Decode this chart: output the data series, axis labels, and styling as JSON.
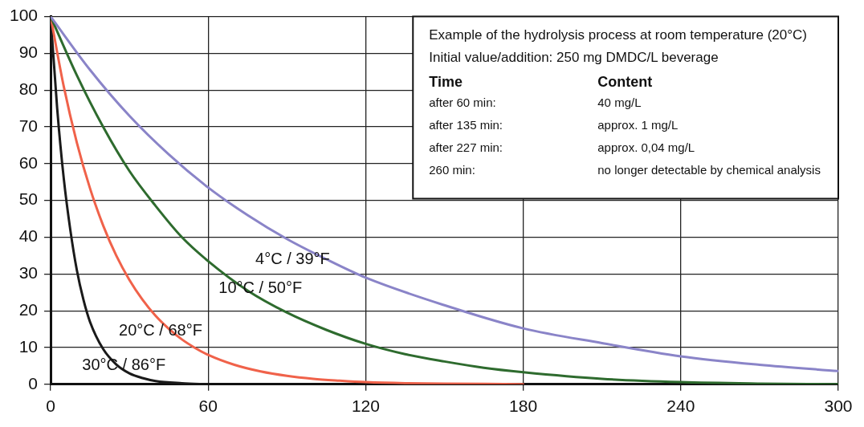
{
  "chart_data": {
    "type": "line",
    "xlim": [
      0,
      300
    ],
    "xticks": [
      0,
      60,
      120,
      180,
      240,
      300
    ],
    "ylim": [
      0,
      100
    ],
    "yticks": [
      0,
      10,
      20,
      30,
      40,
      50,
      60,
      70,
      80,
      90,
      100
    ],
    "grid": true,
    "legend": false,
    "marker": "none",
    "line_style": "solid",
    "annotations": [
      "Example of the hydrolysis process at room temperature (20°C)",
      "Initial value/addition: 250 mg DMDC/L beverage",
      "Time",
      "Content",
      "after 60 min:",
      "40 mg/L",
      "after 135 min:",
      "approx. 1 mg/L",
      "after 227 min:",
      "approx. 0,04 mg/L",
      "260 min:",
      "no longer detectable by chemical analysis"
    ],
    "series": [
      {
        "name": "4°C / 39°F",
        "color": "#8a84c8",
        "x": [
          0,
          15,
          30,
          45,
          60,
          75,
          90,
          105,
          120,
          150,
          180,
          210,
          240,
          270,
          300
        ],
        "values": [
          100,
          85.5,
          73,
          62.5,
          53.5,
          46,
          39.5,
          34,
          29,
          21.5,
          15.2,
          11.2,
          7.6,
          5.3,
          3.6
        ]
      },
      {
        "name": "10°C / 50°F",
        "color": "#2e6b2e",
        "x": [
          0,
          10,
          20,
          30,
          40,
          50,
          60,
          75,
          90,
          105,
          120,
          135,
          150,
          165,
          180,
          210,
          240,
          270,
          300
        ],
        "values": [
          100,
          84,
          70,
          58,
          48.5,
          40,
          33.5,
          25.5,
          19.5,
          14.8,
          11,
          8.2,
          6.2,
          4.5,
          3.3,
          1.5,
          0.6,
          0.2,
          0
        ]
      },
      {
        "name": "20°C / 68°F",
        "color": "#f0624a",
        "x": [
          0,
          5,
          10,
          15,
          20,
          25,
          30,
          35,
          40,
          45,
          50,
          55,
          60,
          70,
          80,
          90,
          100,
          110,
          120,
          135,
          150,
          180
        ],
        "values": [
          100,
          81,
          65.7,
          53.3,
          43.2,
          35,
          28.4,
          23,
          18.6,
          15.1,
          12.2,
          9.9,
          8,
          5.3,
          3.5,
          2.3,
          1.5,
          1,
          0.6,
          0.3,
          0.2,
          0
        ]
      },
      {
        "name": "30°C / 86°F",
        "color": "#1a1a1a",
        "x": [
          0,
          2.5,
          5,
          7.5,
          10,
          12.5,
          15,
          20,
          25,
          30,
          35,
          40,
          50,
          60
        ],
        "values": [
          100,
          75,
          56,
          42,
          31,
          23,
          17,
          9.6,
          5.4,
          3,
          1.7,
          0.9,
          0.3,
          0
        ]
      }
    ]
  }
}
